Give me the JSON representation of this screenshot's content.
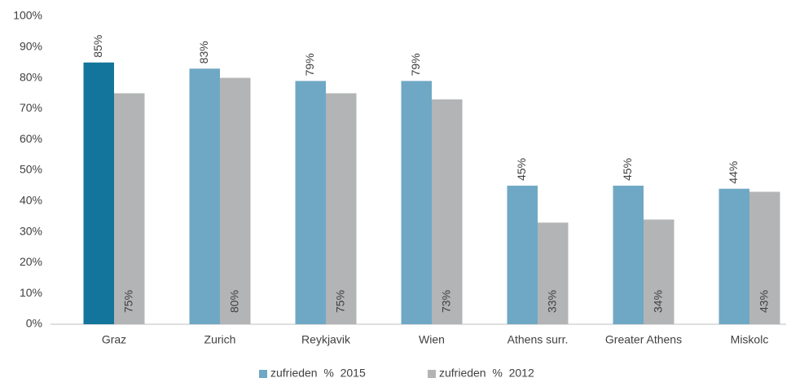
{
  "chart_data": {
    "type": "bar",
    "categories": [
      "Graz",
      "Zurich",
      "Reykjavik",
      "Wien",
      "Athens surr.",
      "Greater Athens",
      "Miskolc"
    ],
    "series": [
      {
        "name": "zufrieden  %  2015",
        "color": "#6fa8c4",
        "colors": [
          "#13759b",
          "#6fa8c4",
          "#6fa8c4",
          "#6fa8c4",
          "#6fa8c4",
          "#6fa8c4",
          "#6fa8c4"
        ],
        "values": [
          85,
          83,
          79,
          79,
          45,
          45,
          44
        ],
        "value_labels": [
          "85%",
          "83%",
          "79%",
          "79%",
          "45%",
          "45%",
          "44%"
        ]
      },
      {
        "name": "zufrieden  %  2012",
        "color": "#b2b4b5",
        "values": [
          75,
          80,
          75,
          73,
          33,
          34,
          43
        ],
        "value_labels": [
          "75%",
          "80%",
          "75%",
          "73%",
          "33%",
          "34%",
          "43%"
        ]
      }
    ],
    "ylim": [
      0,
      100
    ],
    "yticks": [
      {
        "value": 0,
        "label": "0%"
      },
      {
        "value": 10,
        "label": "10%"
      },
      {
        "value": 20,
        "label": "20%"
      },
      {
        "value": 30,
        "label": "30%"
      },
      {
        "value": 40,
        "label": "40%"
      },
      {
        "value": 50,
        "label": "50%"
      },
      {
        "value": 60,
        "label": "60%"
      },
      {
        "value": 70,
        "label": "70%"
      },
      {
        "value": 80,
        "label": "80%"
      },
      {
        "value": 90,
        "label": "90%"
      },
      {
        "value": 100,
        "label": "100%"
      }
    ],
    "grid": false,
    "legend": "bottom"
  }
}
